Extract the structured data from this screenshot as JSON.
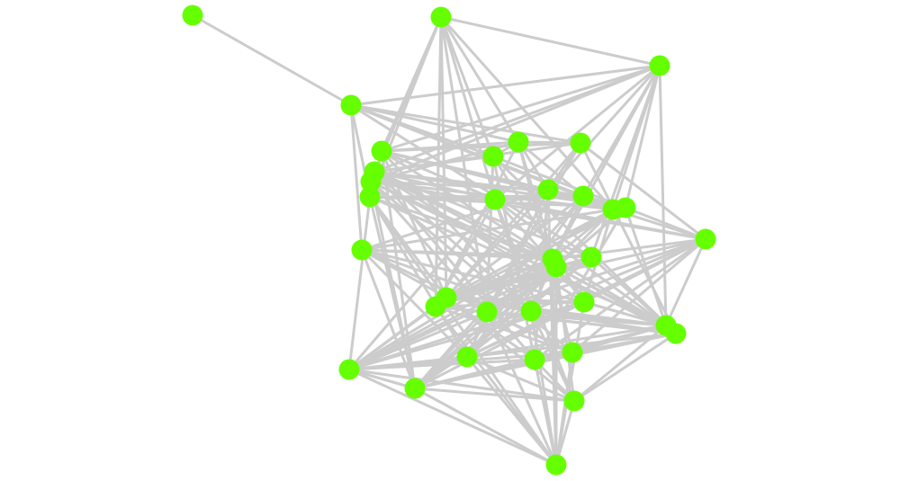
{
  "diagram": {
    "type": "network-graph",
    "node_color": "#66ff00",
    "edge_color": "#cccccc",
    "node_count": 35,
    "edges": [
      [
        1,
        4
      ],
      [
        2,
        3
      ],
      [
        2,
        5
      ],
      [
        2,
        9
      ],
      [
        2,
        10
      ],
      [
        2,
        6
      ],
      [
        2,
        12
      ],
      [
        2,
        22
      ],
      [
        2,
        23
      ],
      [
        2,
        24
      ],
      [
        2,
        15
      ],
      [
        2,
        13
      ],
      [
        2,
        11
      ],
      [
        3,
        5
      ],
      [
        3,
        9
      ],
      [
        3,
        12
      ],
      [
        3,
        13
      ],
      [
        3,
        14
      ],
      [
        3,
        15
      ],
      [
        3,
        21
      ],
      [
        3,
        27
      ],
      [
        3,
        19
      ],
      [
        3,
        10
      ],
      [
        3,
        4
      ],
      [
        3,
        16
      ],
      [
        4,
        8
      ],
      [
        4,
        6
      ],
      [
        4,
        11
      ],
      [
        4,
        18
      ],
      [
        4,
        21
      ],
      [
        4,
        15
      ],
      [
        4,
        7
      ],
      [
        4,
        14
      ],
      [
        5,
        7
      ],
      [
        5,
        8
      ],
      [
        5,
        12
      ],
      [
        5,
        13
      ],
      [
        5,
        15
      ],
      [
        5,
        19
      ],
      [
        5,
        25
      ],
      [
        5,
        22
      ],
      [
        5,
        16
      ],
      [
        5,
        33
      ],
      [
        6,
        7
      ],
      [
        6,
        9
      ],
      [
        6,
        16
      ],
      [
        6,
        26
      ],
      [
        6,
        24
      ],
      [
        6,
        30
      ],
      [
        6,
        28
      ],
      [
        7,
        8
      ],
      [
        7,
        10
      ],
      [
        7,
        14
      ],
      [
        7,
        20
      ],
      [
        7,
        23
      ],
      [
        7,
        31
      ],
      [
        8,
        9
      ],
      [
        8,
        13
      ],
      [
        8,
        17
      ],
      [
        8,
        22
      ],
      [
        8,
        28
      ],
      [
        8,
        24
      ],
      [
        9,
        12
      ],
      [
        9,
        14
      ],
      [
        9,
        16
      ],
      [
        9,
        19
      ],
      [
        9,
        21
      ],
      [
        9,
        26
      ],
      [
        9,
        27
      ],
      [
        9,
        25
      ],
      [
        9,
        30
      ],
      [
        10,
        13
      ],
      [
        10,
        15
      ],
      [
        10,
        17
      ],
      [
        10,
        20
      ],
      [
        10,
        28
      ],
      [
        10,
        31
      ],
      [
        10,
        33
      ],
      [
        10,
        24
      ],
      [
        11,
        12
      ],
      [
        11,
        14
      ],
      [
        11,
        16
      ],
      [
        11,
        19
      ],
      [
        11,
        22
      ],
      [
        11,
        29
      ],
      [
        11,
        32
      ],
      [
        11,
        33
      ],
      [
        11,
        35
      ],
      [
        11,
        27
      ],
      [
        12,
        14
      ],
      [
        12,
        17
      ],
      [
        12,
        20
      ],
      [
        12,
        23
      ],
      [
        12,
        25
      ],
      [
        12,
        27
      ],
      [
        12,
        32
      ],
      [
        12,
        34
      ],
      [
        13,
        15
      ],
      [
        13,
        18
      ],
      [
        13,
        22
      ],
      [
        13,
        24
      ],
      [
        13,
        29
      ],
      [
        13,
        30
      ],
      [
        13,
        35
      ],
      [
        14,
        16
      ],
      [
        14,
        19
      ],
      [
        14,
        23
      ],
      [
        14,
        25
      ],
      [
        14,
        29
      ],
      [
        14,
        33
      ],
      [
        15,
        17
      ],
      [
        15,
        18
      ],
      [
        15,
        22
      ],
      [
        15,
        24
      ],
      [
        15,
        26
      ],
      [
        15,
        29
      ],
      [
        15,
        32
      ],
      [
        16,
        17
      ],
      [
        16,
        20
      ],
      [
        16,
        23
      ],
      [
        16,
        27
      ],
      [
        16,
        30
      ],
      [
        16,
        33
      ],
      [
        17,
        24
      ],
      [
        17,
        25
      ],
      [
        17,
        26
      ],
      [
        17,
        27
      ],
      [
        17,
        29
      ],
      [
        17,
        30
      ],
      [
        17,
        19
      ],
      [
        17,
        22
      ],
      [
        17,
        31
      ],
      [
        18,
        19
      ],
      [
        18,
        21
      ],
      [
        18,
        22
      ],
      [
        18,
        25
      ],
      [
        18,
        26
      ],
      [
        18,
        33
      ],
      [
        18,
        29
      ],
      [
        18,
        31
      ],
      [
        19,
        22
      ],
      [
        19,
        23
      ],
      [
        19,
        27
      ],
      [
        19,
        29
      ],
      [
        19,
        33
      ],
      [
        19,
        35
      ],
      [
        19,
        32
      ],
      [
        20,
        24
      ],
      [
        20,
        26
      ],
      [
        20,
        28
      ],
      [
        20,
        32
      ],
      [
        20,
        34
      ],
      [
        20,
        35
      ],
      [
        21,
        22
      ],
      [
        21,
        23
      ],
      [
        21,
        24
      ],
      [
        21,
        29
      ],
      [
        21,
        32
      ],
      [
        21,
        33
      ],
      [
        21,
        28
      ],
      [
        22,
        25
      ],
      [
        22,
        26
      ],
      [
        22,
        27
      ],
      [
        22,
        30
      ],
      [
        22,
        32
      ],
      [
        22,
        34
      ],
      [
        23,
        26
      ],
      [
        23,
        28
      ],
      [
        23,
        31
      ],
      [
        23,
        32
      ],
      [
        23,
        35
      ],
      [
        24,
        27
      ],
      [
        24,
        28
      ],
      [
        24,
        32
      ],
      [
        24,
        33
      ],
      [
        24,
        35
      ],
      [
        24,
        31
      ],
      [
        25,
        27
      ],
      [
        25,
        28
      ],
      [
        25,
        32
      ],
      [
        25,
        33
      ],
      [
        25,
        35
      ],
      [
        25,
        34
      ],
      [
        26,
        27
      ],
      [
        26,
        29
      ],
      [
        26,
        32
      ],
      [
        26,
        33
      ],
      [
        26,
        35
      ],
      [
        27,
        29
      ],
      [
        27,
        30
      ],
      [
        27,
        33
      ],
      [
        27,
        34
      ],
      [
        27,
        31
      ],
      [
        28,
        29
      ],
      [
        28,
        31
      ],
      [
        28,
        33
      ],
      [
        28,
        34
      ],
      [
        29,
        32
      ],
      [
        29,
        34
      ],
      [
        29,
        35
      ],
      [
        30,
        32
      ],
      [
        30,
        33
      ],
      [
        30,
        35
      ],
      [
        30,
        34
      ],
      [
        31,
        33
      ],
      [
        31,
        35
      ],
      [
        31,
        32
      ],
      [
        32,
        33
      ],
      [
        32,
        34
      ],
      [
        32,
        35
      ],
      [
        33,
        34
      ],
      [
        33,
        35
      ],
      [
        34,
        35
      ]
    ]
  }
}
